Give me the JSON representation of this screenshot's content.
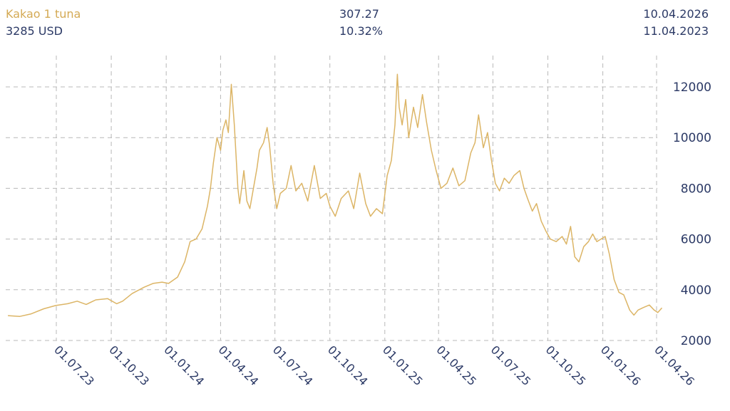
{
  "header": {
    "instrument": "Kakao 1 tuna",
    "price": "3285 USD",
    "change_abs": "307.27",
    "change_pct": "10.32%",
    "date_end": "10.04.2026",
    "date_start": "11.04.2023"
  },
  "colors": {
    "line": "#dcb566",
    "text_gold": "#d4aa55",
    "text_navy": "#2c3a66",
    "grid": "#b8b8b8"
  },
  "chart_data": {
    "type": "line",
    "title": "",
    "xlabel": "",
    "ylabel": "",
    "grid": true,
    "y_axis_side": "right",
    "ylim": [
      2000,
      12500
    ],
    "yticks": [
      "12000",
      "10000",
      "8000",
      "6000",
      "4000",
      "2000"
    ],
    "x_range": [
      "2023-04-11",
      "2026-04-10"
    ],
    "x_tick_dates": [
      "2023-07-01",
      "2023-10-01",
      "2024-01-01",
      "2024-04-01",
      "2024-07-01",
      "2024-10-01",
      "2025-01-01",
      "2025-04-01",
      "2025-07-01",
      "2025-10-01",
      "2026-01-01",
      "2026-04-01"
    ],
    "x_tick_labels": [
      "01.07.23",
      "01.10.23",
      "01.01.24",
      "01.04.24",
      "01.07.24",
      "01.10.24",
      "01.01.25",
      "01.04.25",
      "01.07.25",
      "01.10.25",
      "01.01.26",
      "01.04.26"
    ],
    "series": [
      {
        "points": [
          [
            "2023-04-11",
            2980
          ],
          [
            "2023-05-01",
            2950
          ],
          [
            "2023-05-20",
            3050
          ],
          [
            "2023-06-10",
            3250
          ],
          [
            "2023-06-30",
            3380
          ],
          [
            "2023-07-20",
            3450
          ],
          [
            "2023-08-05",
            3550
          ],
          [
            "2023-08-20",
            3420
          ],
          [
            "2023-09-05",
            3600
          ],
          [
            "2023-09-25",
            3650
          ],
          [
            "2023-10-10",
            3450
          ],
          [
            "2023-10-20",
            3550
          ],
          [
            "2023-11-05",
            3850
          ],
          [
            "2023-11-25",
            4100
          ],
          [
            "2023-12-10",
            4250
          ],
          [
            "2023-12-25",
            4300
          ],
          [
            "2024-01-05",
            4250
          ],
          [
            "2024-01-20",
            4500
          ],
          [
            "2024-02-01",
            5100
          ],
          [
            "2024-02-10",
            5900
          ],
          [
            "2024-02-20",
            6000
          ],
          [
            "2024-03-01",
            6400
          ],
          [
            "2024-03-10",
            7300
          ],
          [
            "2024-03-15",
            8000
          ],
          [
            "2024-03-20",
            9000
          ],
          [
            "2024-03-26",
            10000
          ],
          [
            "2024-04-01",
            9500
          ],
          [
            "2024-04-05",
            10300
          ],
          [
            "2024-04-10",
            10700
          ],
          [
            "2024-04-14",
            10200
          ],
          [
            "2024-04-19",
            12100
          ],
          [
            "2024-04-24",
            10500
          ],
          [
            "2024-04-30",
            8000
          ],
          [
            "2024-05-03",
            7400
          ],
          [
            "2024-05-10",
            8700
          ],
          [
            "2024-05-15",
            7500
          ],
          [
            "2024-05-20",
            7200
          ],
          [
            "2024-06-01",
            8800
          ],
          [
            "2024-06-05",
            9500
          ],
          [
            "2024-06-12",
            9800
          ],
          [
            "2024-06-18",
            10400
          ],
          [
            "2024-06-22",
            9700
          ],
          [
            "2024-06-28",
            8200
          ],
          [
            "2024-07-04",
            7200
          ],
          [
            "2024-07-10",
            7800
          ],
          [
            "2024-07-20",
            8000
          ],
          [
            "2024-07-28",
            8900
          ],
          [
            "2024-08-05",
            7900
          ],
          [
            "2024-08-15",
            8200
          ],
          [
            "2024-08-25",
            7500
          ],
          [
            "2024-09-05",
            8900
          ],
          [
            "2024-09-15",
            7600
          ],
          [
            "2024-09-25",
            7800
          ],
          [
            "2024-10-01",
            7300
          ],
          [
            "2024-10-10",
            6900
          ],
          [
            "2024-10-20",
            7600
          ],
          [
            "2024-11-01",
            7900
          ],
          [
            "2024-11-10",
            7200
          ],
          [
            "2024-11-20",
            8600
          ],
          [
            "2024-11-30",
            7400
          ],
          [
            "2024-12-08",
            6900
          ],
          [
            "2024-12-18",
            7200
          ],
          [
            "2024-12-28",
            7000
          ],
          [
            "2025-01-05",
            8500
          ],
          [
            "2025-01-12",
            9100
          ],
          [
            "2025-01-18",
            10500
          ],
          [
            "2025-01-22",
            12500
          ],
          [
            "2025-01-25",
            11200
          ],
          [
            "2025-01-30",
            10500
          ],
          [
            "2025-02-05",
            11500
          ],
          [
            "2025-02-10",
            10000
          ],
          [
            "2025-02-18",
            11200
          ],
          [
            "2025-02-25",
            10400
          ],
          [
            "2025-03-05",
            11700
          ],
          [
            "2025-03-12",
            10600
          ],
          [
            "2025-03-20",
            9500
          ],
          [
            "2025-03-28",
            8700
          ],
          [
            "2025-04-05",
            8000
          ],
          [
            "2025-04-15",
            8200
          ],
          [
            "2025-04-25",
            8800
          ],
          [
            "2025-05-05",
            8100
          ],
          [
            "2025-05-15",
            8300
          ],
          [
            "2025-05-25",
            9400
          ],
          [
            "2025-06-01",
            9800
          ],
          [
            "2025-06-07",
            10900
          ],
          [
            "2025-06-15",
            9600
          ],
          [
            "2025-06-22",
            10200
          ],
          [
            "2025-06-28",
            9200
          ],
          [
            "2025-07-05",
            8200
          ],
          [
            "2025-07-12",
            7900
          ],
          [
            "2025-07-20",
            8400
          ],
          [
            "2025-07-28",
            8200
          ],
          [
            "2025-08-05",
            8500
          ],
          [
            "2025-08-15",
            8700
          ],
          [
            "2025-08-22",
            8000
          ],
          [
            "2025-08-28",
            7600
          ],
          [
            "2025-09-05",
            7100
          ],
          [
            "2025-09-12",
            7400
          ],
          [
            "2025-09-20",
            6700
          ],
          [
            "2025-09-28",
            6300
          ],
          [
            "2025-10-05",
            6000
          ],
          [
            "2025-10-15",
            5900
          ],
          [
            "2025-10-25",
            6100
          ],
          [
            "2025-11-01",
            5800
          ],
          [
            "2025-11-08",
            6500
          ],
          [
            "2025-11-15",
            5300
          ],
          [
            "2025-11-22",
            5100
          ],
          [
            "2025-11-30",
            5700
          ],
          [
            "2025-12-08",
            5900
          ],
          [
            "2025-12-15",
            6200
          ],
          [
            "2025-12-22",
            5900
          ],
          [
            "2025-12-29",
            6000
          ],
          [
            "2026-01-05",
            6100
          ],
          [
            "2026-01-12",
            5400
          ],
          [
            "2026-01-20",
            4400
          ],
          [
            "2026-01-28",
            3900
          ],
          [
            "2026-02-05",
            3800
          ],
          [
            "2026-02-15",
            3200
          ],
          [
            "2026-02-22",
            3000
          ],
          [
            "2026-03-01",
            3200
          ],
          [
            "2026-03-10",
            3300
          ],
          [
            "2026-03-20",
            3400
          ],
          [
            "2026-03-28",
            3200
          ],
          [
            "2026-04-03",
            3100
          ],
          [
            "2026-04-10",
            3285
          ]
        ]
      }
    ]
  }
}
